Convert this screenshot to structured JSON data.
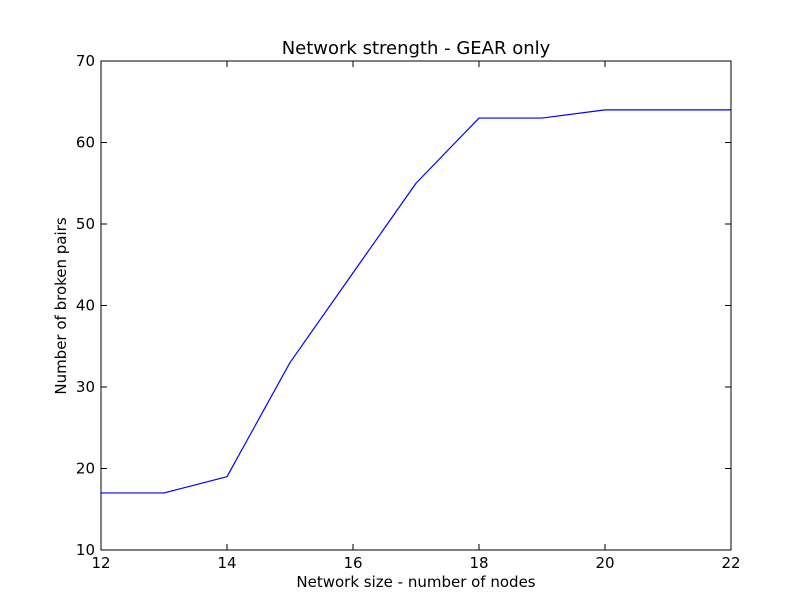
{
  "chart_data": {
    "type": "line",
    "title": "Network strength - GEAR only",
    "xlabel": "Network size - number of nodes",
    "ylabel": "Number of broken pairs",
    "xlim": [
      12,
      22
    ],
    "ylim": [
      10,
      70
    ],
    "xticks": [
      12,
      14,
      16,
      18,
      20,
      22
    ],
    "yticks": [
      10,
      20,
      30,
      40,
      50,
      60,
      70
    ],
    "xtick_labels": [
      "12",
      "14",
      "16",
      "18",
      "20",
      "22"
    ],
    "ytick_labels": [
      "10",
      "20",
      "30",
      "40",
      "50",
      "60",
      "70"
    ],
    "grid": false,
    "series": [
      {
        "color": "#0000ff",
        "x": [
          12,
          13,
          14,
          15,
          16,
          17,
          18,
          19,
          20,
          21,
          22
        ],
        "y": [
          17,
          17,
          19,
          33,
          44,
          55,
          63,
          63,
          64,
          64,
          64
        ]
      }
    ]
  }
}
